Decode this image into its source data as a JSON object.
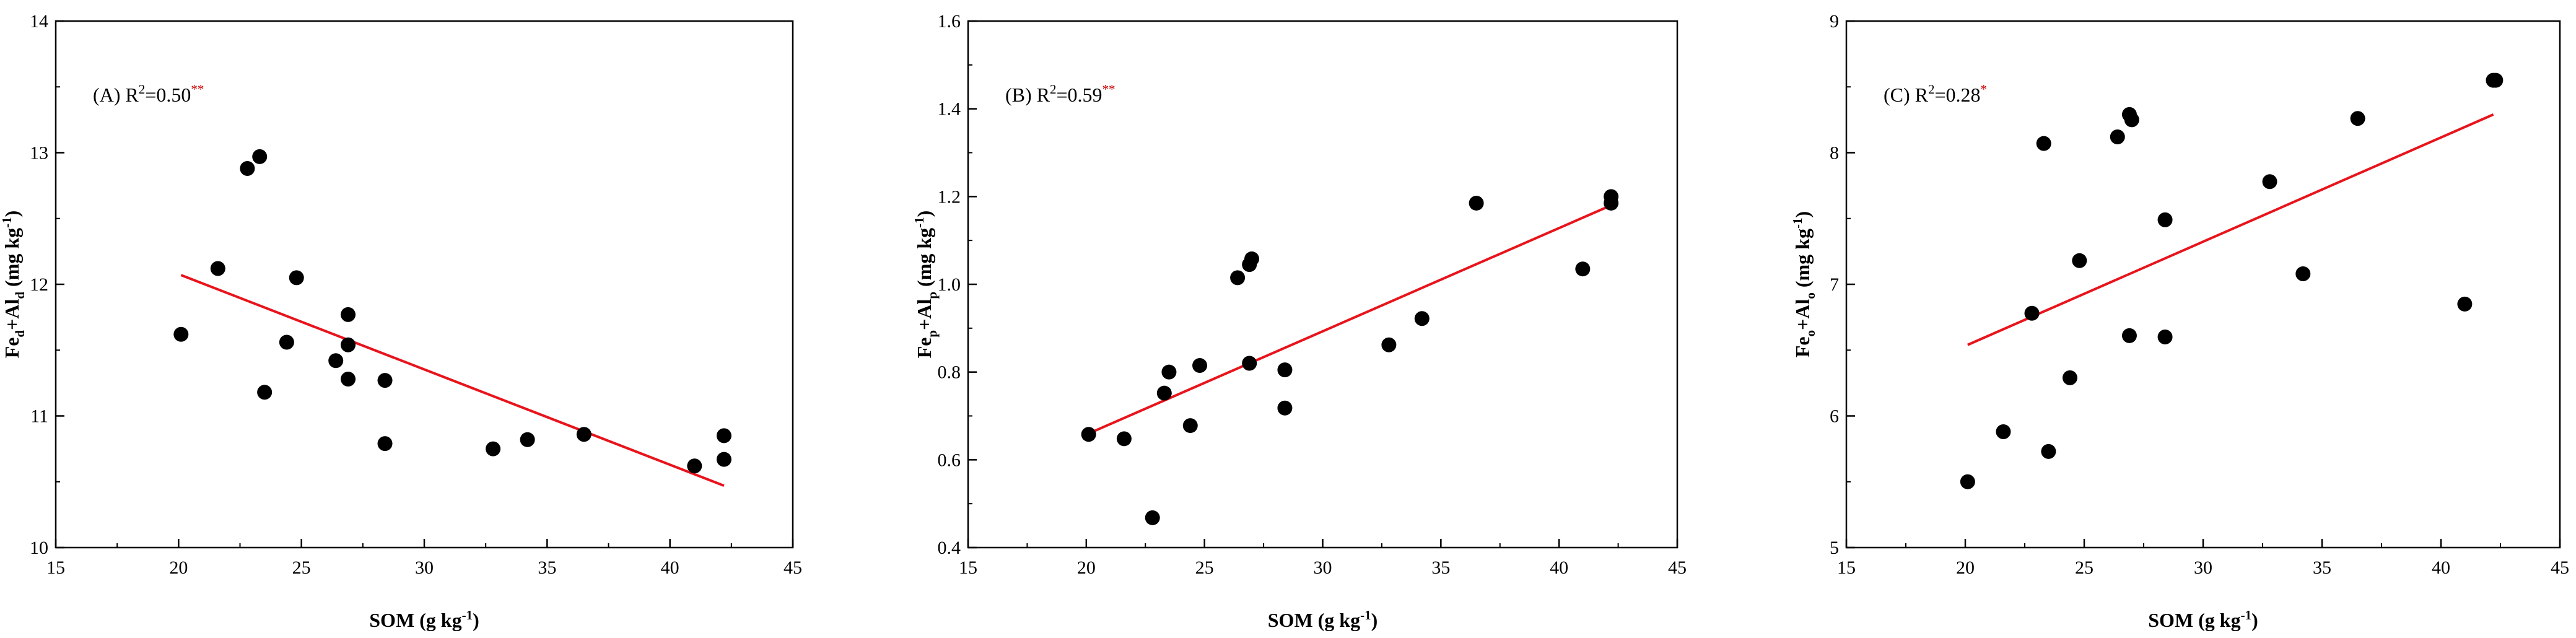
{
  "chart_data": [
    {
      "type": "scatter",
      "panel": "(A)",
      "annotation": {
        "prefix": "(A) R",
        "exp": "2",
        "value": "=0.50",
        "sig": "**"
      },
      "xlabel": {
        "main": "SOM (g kg",
        "sup": "-1",
        "tail": ")"
      },
      "ylabel": {
        "a": "Fe",
        "a_sub": "d",
        "mid": "+Al",
        "b_sub": "d",
        "unit": " (mg kg",
        "unit_sup": "-1",
        "tail": ")"
      },
      "xlim": [
        15,
        45
      ],
      "ylim": [
        10,
        14
      ],
      "xticks": [
        "15",
        "20",
        "25",
        "30",
        "35",
        "40",
        "45"
      ],
      "yticks": [
        "10",
        "11",
        "12",
        "13",
        "14"
      ],
      "points": [
        [
          20.1,
          11.62
        ],
        [
          21.6,
          12.12
        ],
        [
          22.8,
          12.88
        ],
        [
          23.3,
          12.97
        ],
        [
          23.5,
          11.18
        ],
        [
          24.4,
          11.56
        ],
        [
          24.8,
          12.05
        ],
        [
          26.4,
          11.42
        ],
        [
          26.9,
          11.77
        ],
        [
          26.9,
          11.54
        ],
        [
          26.9,
          11.28
        ],
        [
          28.4,
          11.27
        ],
        [
          28.4,
          10.79
        ],
        [
          32.8,
          10.75
        ],
        [
          34.2,
          10.82
        ],
        [
          36.5,
          10.86
        ],
        [
          41.0,
          10.62
        ],
        [
          42.2,
          10.85
        ],
        [
          42.2,
          10.67
        ]
      ],
      "fit": [
        [
          20.1,
          12.07
        ],
        [
          42.2,
          10.47
        ]
      ]
    },
    {
      "type": "scatter",
      "panel": "(B)",
      "annotation": {
        "prefix": "(B) R",
        "exp": "2",
        "value": "=0.59",
        "sig": "**"
      },
      "xlabel": {
        "main": "SOM (g kg",
        "sup": "-1",
        "tail": ")"
      },
      "ylabel": {
        "a": "Fe",
        "a_sub": "p",
        "mid": "+Al",
        "b_sub": "p",
        "unit": " (mg kg",
        "unit_sup": "-1",
        "tail": ")"
      },
      "xlim": [
        15,
        45
      ],
      "ylim": [
        0.4,
        1.6
      ],
      "xticks": [
        "15",
        "20",
        "25",
        "30",
        "35",
        "40",
        "45"
      ],
      "yticks": [
        "0.4",
        "0.6",
        "0.8",
        "1.0",
        "1.2",
        "1.4",
        "1.6"
      ],
      "points": [
        [
          20.1,
          0.658
        ],
        [
          21.6,
          0.648
        ],
        [
          22.8,
          0.468
        ],
        [
          23.3,
          0.752
        ],
        [
          23.5,
          0.8
        ],
        [
          24.4,
          0.678
        ],
        [
          24.8,
          0.815
        ],
        [
          26.4,
          1.015
        ],
        [
          26.9,
          1.045
        ],
        [
          27.0,
          1.058
        ],
        [
          26.9,
          0.82
        ],
        [
          28.4,
          0.805
        ],
        [
          28.4,
          0.718
        ],
        [
          32.8,
          0.862
        ],
        [
          34.2,
          0.922
        ],
        [
          36.5,
          1.185
        ],
        [
          41.0,
          1.035
        ],
        [
          42.2,
          1.2
        ],
        [
          42.2,
          1.185
        ]
      ],
      "fit": [
        [
          20.1,
          0.66
        ],
        [
          42.2,
          1.18
        ]
      ]
    },
    {
      "type": "scatter",
      "panel": "(C)",
      "annotation": {
        "prefix": "(C) R",
        "exp": "2",
        "value": "=0.28",
        "sig": "*"
      },
      "xlabel": {
        "main": "SOM (g kg",
        "sup": "-1",
        "tail": ")"
      },
      "ylabel": {
        "a": "Fe",
        "a_sub": "o",
        "mid": "+Al",
        "b_sub": "o",
        "unit": " (mg kg",
        "unit_sup": "-1",
        "tail": ")"
      },
      "xlim": [
        15,
        45
      ],
      "ylim": [
        5,
        9
      ],
      "xticks": [
        "15",
        "20",
        "25",
        "30",
        "35",
        "40",
        "45"
      ],
      "yticks": [
        "5",
        "6",
        "7",
        "8",
        "9"
      ],
      "points": [
        [
          20.1,
          5.5
        ],
        [
          21.6,
          5.88
        ],
        [
          22.8,
          6.78
        ],
        [
          23.3,
          8.07
        ],
        [
          23.5,
          5.73
        ],
        [
          24.4,
          6.29
        ],
        [
          24.8,
          7.18
        ],
        [
          26.4,
          8.12
        ],
        [
          26.9,
          8.29
        ],
        [
          27.0,
          8.25
        ],
        [
          26.9,
          6.61
        ],
        [
          28.4,
          7.49
        ],
        [
          28.4,
          6.6
        ],
        [
          32.8,
          7.78
        ],
        [
          34.2,
          7.08
        ],
        [
          36.5,
          8.26
        ],
        [
          41.0,
          6.85
        ],
        [
          42.2,
          8.55
        ],
        [
          42.3,
          8.55
        ]
      ],
      "fit": [
        [
          20.1,
          6.54
        ],
        [
          42.2,
          8.29
        ]
      ]
    }
  ]
}
